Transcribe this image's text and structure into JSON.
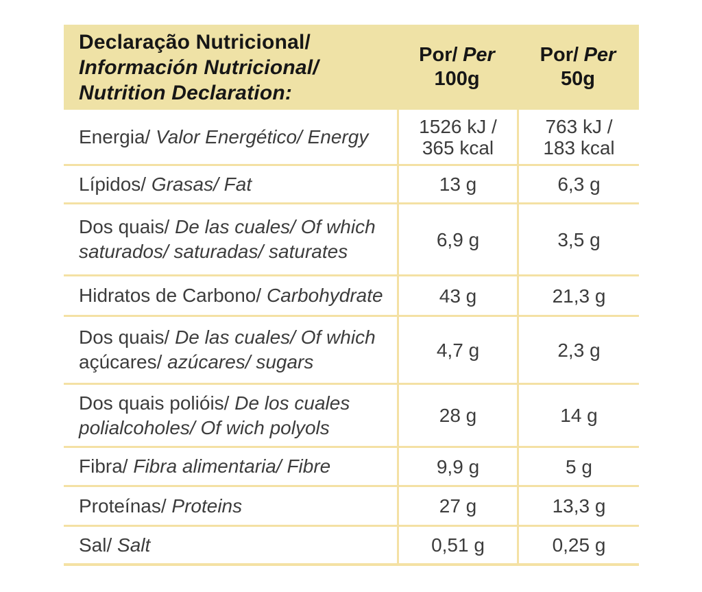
{
  "colors": {
    "background": "#ffffff",
    "band": "#efe2a6",
    "line": "#f4e1a4",
    "text": "#3c3c3c",
    "header_text": "#161616"
  },
  "header": {
    "title_lines": [
      {
        "text": "Declaração Nutricional/",
        "italic": false
      },
      {
        "text": "Información Nutricional/",
        "italic": true
      },
      {
        "text": "Nutrition Declaration:",
        "italic": true
      }
    ],
    "columns": [
      {
        "por": "Por/",
        "per": "Per",
        "amount": "100g"
      },
      {
        "por": "Por/",
        "per": "Per",
        "amount": "50g"
      }
    ]
  },
  "rows": [
    {
      "label_lines": [
        [
          {
            "text": "Energia/ ",
            "italic": false
          },
          {
            "text": "Valor Energético/ Energy",
            "italic": true
          }
        ]
      ],
      "per_100g_lines": [
        "1526 kJ /",
        "365 kcal"
      ],
      "per_50g_lines": [
        "763 kJ /",
        "183 kcal"
      ]
    },
    {
      "label_lines": [
        [
          {
            "text": "Lípidos/ ",
            "italic": false
          },
          {
            "text": "Grasas/ Fat",
            "italic": true
          }
        ]
      ],
      "per_100g_lines": [
        "13 g"
      ],
      "per_50g_lines": [
        "6,3 g"
      ]
    },
    {
      "label_lines": [
        [
          {
            "text": "Dos quais/ ",
            "italic": false
          },
          {
            "text": "De las cuales/ Of which",
            "italic": true
          }
        ],
        [
          {
            "text": "saturados/ saturadas/ saturates",
            "italic": true
          }
        ]
      ],
      "per_100g_lines": [
        "6,9 g"
      ],
      "per_50g_lines": [
        "3,5 g"
      ]
    },
    {
      "label_lines": [
        [
          {
            "text": "Hidratos de Carbono/ ",
            "italic": false
          },
          {
            "text": "Carbohydrate",
            "italic": true
          }
        ]
      ],
      "per_100g_lines": [
        "43 g"
      ],
      "per_50g_lines": [
        "21,3 g"
      ]
    },
    {
      "label_lines": [
        [
          {
            "text": "Dos quais/ ",
            "italic": false
          },
          {
            "text": "De las cuales/ Of which",
            "italic": true
          }
        ],
        [
          {
            "text": "açúcares/ ",
            "italic": false
          },
          {
            "text": "azúcares/ sugars",
            "italic": true
          }
        ]
      ],
      "per_100g_lines": [
        "4,7 g"
      ],
      "per_50g_lines": [
        "2,3 g"
      ]
    },
    {
      "label_lines": [
        [
          {
            "text": "Dos quais polióis/ ",
            "italic": false
          },
          {
            "text": "De los cuales",
            "italic": true
          }
        ],
        [
          {
            "text": "polialcoholes/ Of wich polyols",
            "italic": true
          }
        ]
      ],
      "per_100g_lines": [
        "28 g"
      ],
      "per_50g_lines": [
        "14 g"
      ]
    },
    {
      "label_lines": [
        [
          {
            "text": "Fibra/ ",
            "italic": false
          },
          {
            "text": "Fibra alimentaria/ Fibre",
            "italic": true
          }
        ]
      ],
      "per_100g_lines": [
        "9,9 g"
      ],
      "per_50g_lines": [
        "5 g"
      ]
    },
    {
      "label_lines": [
        [
          {
            "text": "Proteínas/ ",
            "italic": false
          },
          {
            "text": "Proteins",
            "italic": true
          }
        ]
      ],
      "per_100g_lines": [
        "27 g"
      ],
      "per_50g_lines": [
        "13,3 g"
      ]
    },
    {
      "label_lines": [
        [
          {
            "text": "Sal/ ",
            "italic": false
          },
          {
            "text": "Salt",
            "italic": true
          }
        ]
      ],
      "per_100g_lines": [
        "0,51 g"
      ],
      "per_50g_lines": [
        "0,25 g"
      ]
    }
  ]
}
